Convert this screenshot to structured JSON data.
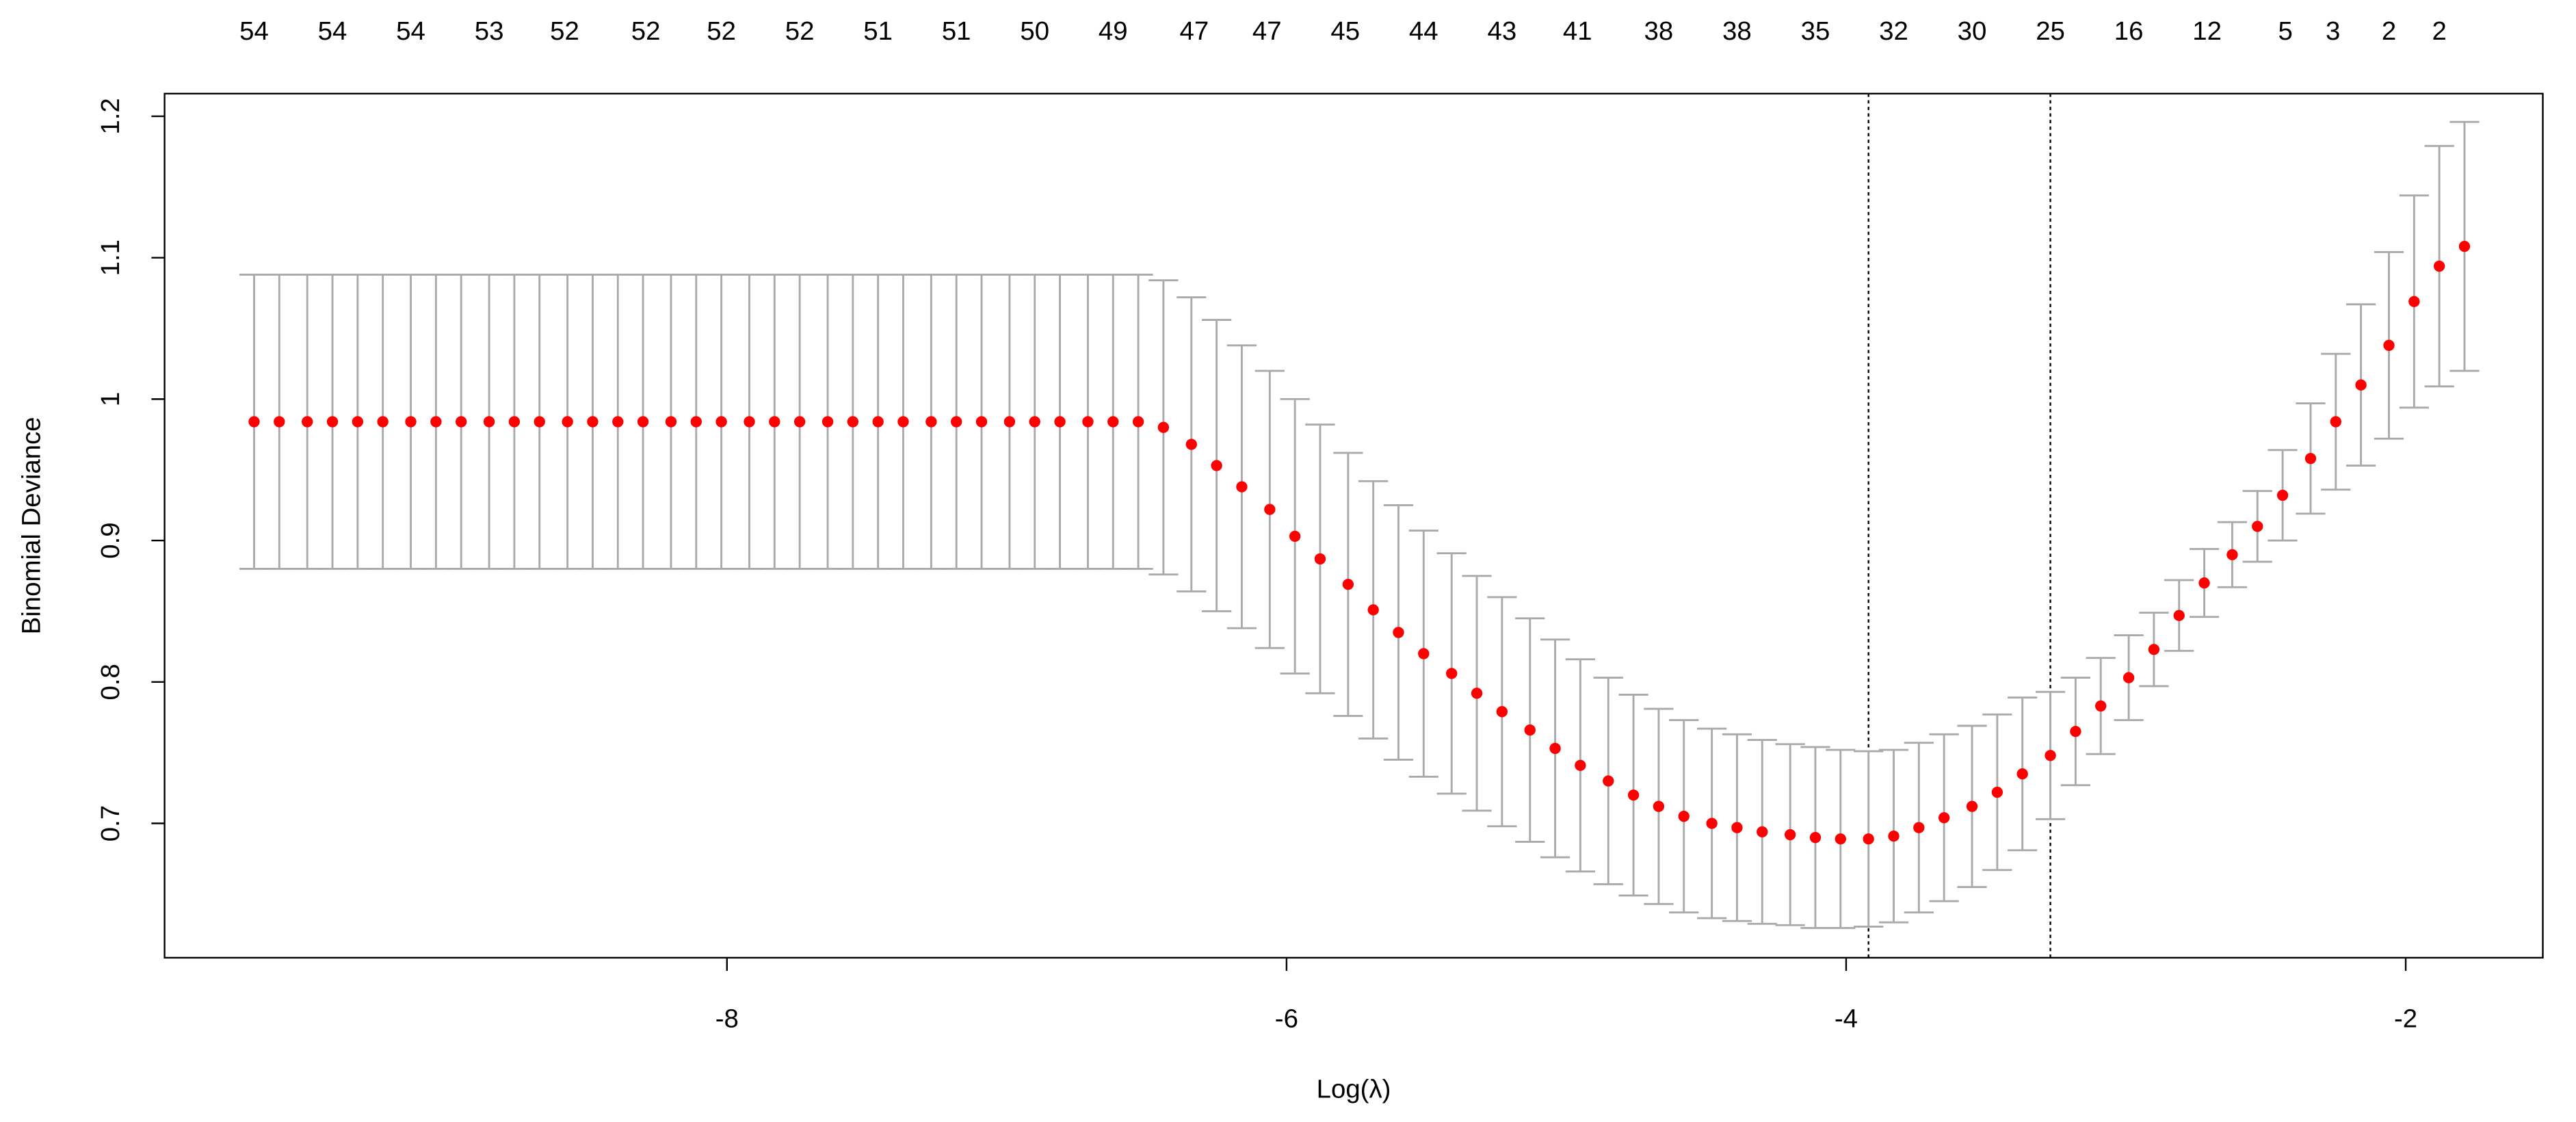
{
  "chart_data": {
    "type": "errorbar",
    "xlabel": "Log(λ)",
    "ylabel": "Binomial Deviance",
    "xlim": [
      -10.01,
      -1.51
    ],
    "ylim": [
      0.605,
      1.216
    ],
    "xticks": [
      -8,
      -6,
      -4,
      -2
    ],
    "yticks": [
      0.7,
      0.8,
      0.9,
      1.0,
      1.1,
      1.2
    ],
    "top_ticks": [
      {
        "value": -9.69,
        "label": "54"
      },
      {
        "value": -9.41,
        "label": "54"
      },
      {
        "value": -9.13,
        "label": "54"
      },
      {
        "value": -8.85,
        "label": "53"
      },
      {
        "value": -8.58,
        "label": "52"
      },
      {
        "value": -8.29,
        "label": "52"
      },
      {
        "value": -8.02,
        "label": "52"
      },
      {
        "value": -7.74,
        "label": "52"
      },
      {
        "value": -7.46,
        "label": "51"
      },
      {
        "value": -7.18,
        "label": "51"
      },
      {
        "value": -6.9,
        "label": "50"
      },
      {
        "value": -6.62,
        "label": "49"
      },
      {
        "value": -6.33,
        "label": "47"
      },
      {
        "value": -6.07,
        "label": "47"
      },
      {
        "value": -5.79,
        "label": "45"
      },
      {
        "value": -5.51,
        "label": "44"
      },
      {
        "value": -5.23,
        "label": "43"
      },
      {
        "value": -4.96,
        "label": "41"
      },
      {
        "value": -4.67,
        "label": "38"
      },
      {
        "value": -4.39,
        "label": "38"
      },
      {
        "value": -4.11,
        "label": "35"
      },
      {
        "value": -3.83,
        "label": "32"
      },
      {
        "value": -3.55,
        "label": "30"
      },
      {
        "value": -3.27,
        "label": "25"
      },
      {
        "value": -2.99,
        "label": "16"
      },
      {
        "value": -2.71,
        "label": "12"
      },
      {
        "value": -2.43,
        "label": "5"
      },
      {
        "value": -2.26,
        "label": "3"
      },
      {
        "value": -2.06,
        "label": "2"
      },
      {
        "value": -1.88,
        "label": "2"
      }
    ],
    "vlines": [
      -3.92,
      -3.27
    ],
    "point_color": "#ff0000",
    "bar_color": "#aaaaaa",
    "x": [
      -9.69,
      -9.6,
      -9.5,
      -9.41,
      -9.32,
      -9.23,
      -9.13,
      -9.04,
      -8.95,
      -8.85,
      -8.76,
      -8.67,
      -8.57,
      -8.48,
      -8.39,
      -8.3,
      -8.2,
      -8.11,
      -8.02,
      -7.92,
      -7.83,
      -7.74,
      -7.64,
      -7.55,
      -7.46,
      -7.37,
      -7.27,
      -7.18,
      -7.09,
      -6.99,
      -6.9,
      -6.81,
      -6.71,
      -6.62,
      -6.53,
      -6.44,
      -6.34,
      -6.25,
      -6.16,
      -6.06,
      -5.97,
      -5.88,
      -5.78,
      -5.69,
      -5.6,
      -5.51,
      -5.41,
      -5.32,
      -5.23,
      -5.13,
      -5.04,
      -4.95,
      -4.85,
      -4.76,
      -4.67,
      -4.58,
      -4.48,
      -4.39,
      -4.3,
      -4.2,
      -4.11,
      -4.02,
      -3.92,
      -3.83,
      -3.74,
      -3.65,
      -3.55,
      -3.46,
      -3.37,
      -3.27,
      -3.18,
      -3.09,
      -2.99,
      -2.9,
      -2.81,
      -2.72,
      -2.62,
      -2.53,
      -2.44,
      -2.34,
      -2.25,
      -2.16,
      -2.06,
      -1.97,
      -1.88,
      -1.79
    ],
    "values": [
      0.984,
      0.984,
      0.984,
      0.984,
      0.984,
      0.984,
      0.984,
      0.984,
      0.984,
      0.984,
      0.984,
      0.984,
      0.984,
      0.984,
      0.984,
      0.984,
      0.984,
      0.984,
      0.984,
      0.984,
      0.984,
      0.984,
      0.984,
      0.984,
      0.984,
      0.984,
      0.984,
      0.984,
      0.984,
      0.984,
      0.984,
      0.984,
      0.984,
      0.984,
      0.984,
      0.98,
      0.968,
      0.953,
      0.938,
      0.922,
      0.903,
      0.887,
      0.869,
      0.851,
      0.835,
      0.82,
      0.806,
      0.792,
      0.779,
      0.766,
      0.753,
      0.741,
      0.73,
      0.72,
      0.712,
      0.705,
      0.7,
      0.697,
      0.694,
      0.692,
      0.69,
      0.689,
      0.689,
      0.691,
      0.697,
      0.704,
      0.712,
      0.722,
      0.735,
      0.748,
      0.765,
      0.783,
      0.803,
      0.823,
      0.847,
      0.87,
      0.89,
      0.91,
      0.932,
      0.958,
      0.984,
      1.01,
      1.038,
      1.069,
      1.094,
      1.108
    ],
    "errors": [
      0.104,
      0.104,
      0.104,
      0.104,
      0.104,
      0.104,
      0.104,
      0.104,
      0.104,
      0.104,
      0.104,
      0.104,
      0.104,
      0.104,
      0.104,
      0.104,
      0.104,
      0.104,
      0.104,
      0.104,
      0.104,
      0.104,
      0.104,
      0.104,
      0.104,
      0.104,
      0.104,
      0.104,
      0.104,
      0.104,
      0.104,
      0.104,
      0.104,
      0.104,
      0.104,
      0.104,
      0.104,
      0.103,
      0.1,
      0.098,
      0.097,
      0.095,
      0.093,
      0.091,
      0.09,
      0.087,
      0.085,
      0.083,
      0.081,
      0.079,
      0.077,
      0.075,
      0.073,
      0.071,
      0.069,
      0.068,
      0.067,
      0.066,
      0.065,
      0.064,
      0.064,
      0.063,
      0.062,
      0.061,
      0.06,
      0.059,
      0.057,
      0.055,
      0.054,
      0.045,
      0.038,
      0.034,
      0.03,
      0.026,
      0.025,
      0.024,
      0.023,
      0.025,
      0.032,
      0.039,
      0.048,
      0.057,
      0.066,
      0.075,
      0.085,
      0.088
    ]
  }
}
